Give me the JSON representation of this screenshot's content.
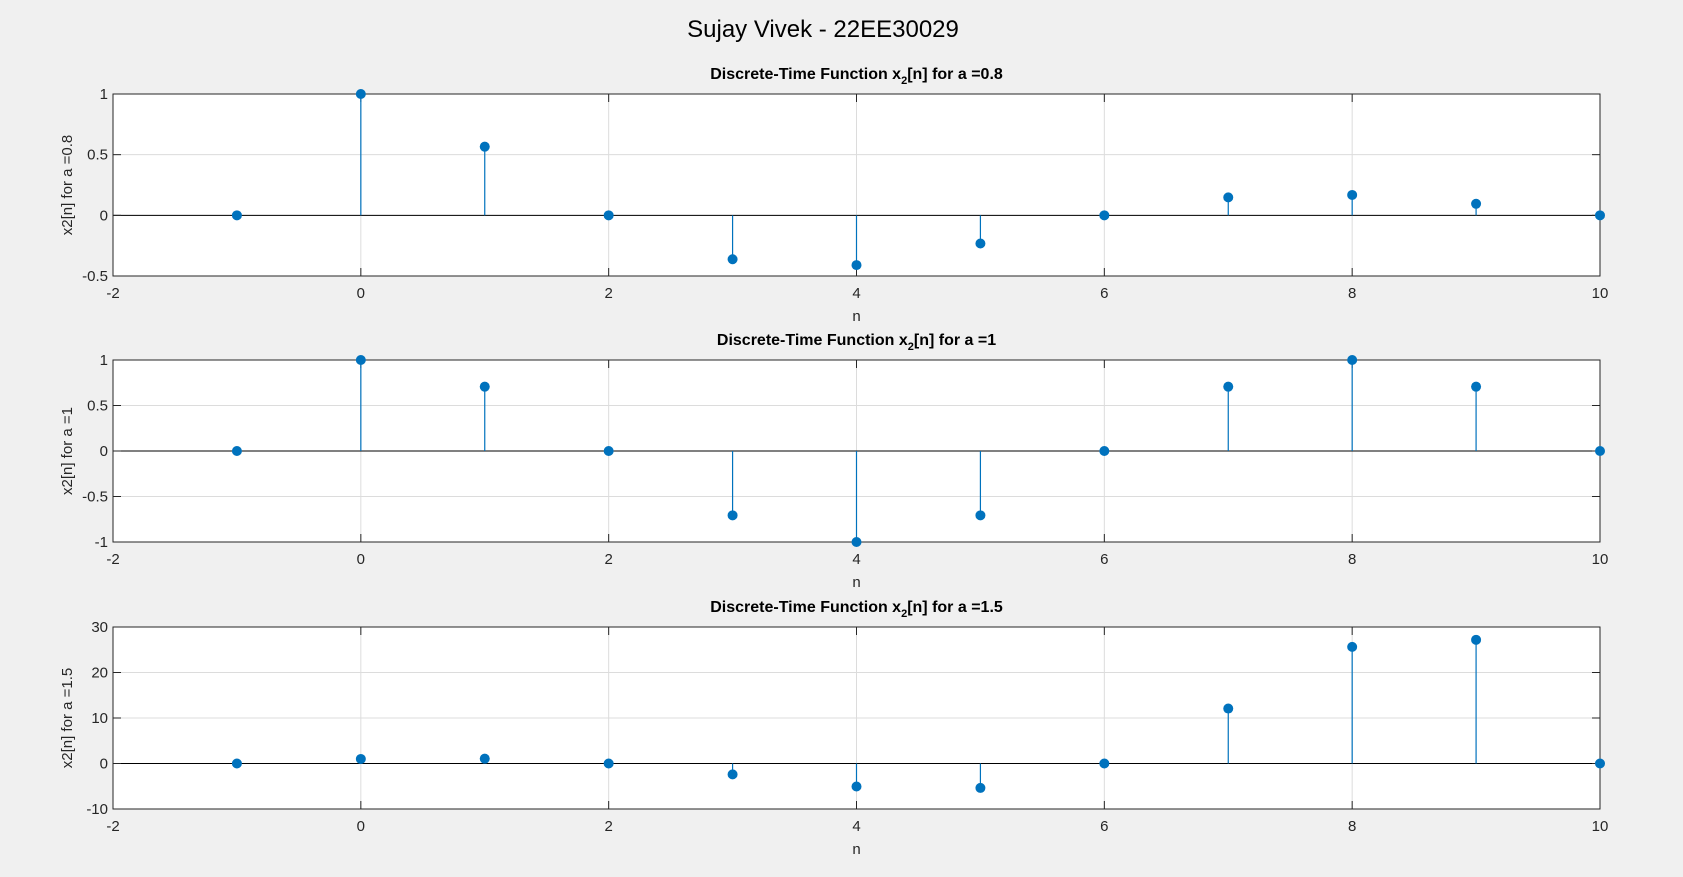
{
  "figure": {
    "title": "Sujay Vivek - 22EE30029"
  },
  "colors": {
    "background": "#f0f0f0",
    "axes_background": "#ffffff",
    "series": "#0072BD",
    "grid": "#dcdcdc"
  },
  "chart_data": [
    {
      "type": "stem",
      "title_main": "Discrete-Time Function x",
      "title_sub": "2",
      "title_rest": "[n] for a =0.8",
      "xlabel": "n",
      "ylabel": "x2[n] for a =0.8",
      "xlim": [
        -2,
        10
      ],
      "ylim": [
        -0.5,
        1
      ],
      "xticks": [
        -2,
        0,
        2,
        4,
        6,
        8,
        10
      ],
      "xtick_labels": [
        "-2",
        "0",
        "2",
        "4",
        "6",
        "8",
        "10"
      ],
      "yticks": [
        -0.5,
        0,
        0.5,
        1
      ],
      "ytick_labels": [
        "-0.5",
        "0",
        "0.5",
        "1"
      ],
      "grid": true,
      "x": [
        -1,
        0,
        1,
        2,
        3,
        4,
        5,
        6,
        7,
        8,
        9,
        10
      ],
      "y": [
        0,
        1,
        0.566,
        0,
        -0.362,
        -0.41,
        -0.232,
        0,
        0.148,
        0.168,
        0.095,
        0
      ]
    },
    {
      "type": "stem",
      "title_main": "Discrete-Time Function x",
      "title_sub": "2",
      "title_rest": "[n] for a =1",
      "xlabel": "n",
      "ylabel": "x2[n] for a =1",
      "xlim": [
        -2,
        10
      ],
      "ylim": [
        -1,
        1
      ],
      "xticks": [
        -2,
        0,
        2,
        4,
        6,
        8,
        10
      ],
      "xtick_labels": [
        "-2",
        "0",
        "2",
        "4",
        "6",
        "8",
        "10"
      ],
      "yticks": [
        -1,
        -0.5,
        0,
        0.5,
        1
      ],
      "ytick_labels": [
        "-1",
        "-0.5",
        "0",
        "0.5",
        "1"
      ],
      "grid": true,
      "x": [
        -1,
        0,
        1,
        2,
        3,
        4,
        5,
        6,
        7,
        8,
        9,
        10
      ],
      "y": [
        0,
        1,
        0.707,
        0,
        -0.707,
        -1,
        -0.707,
        0,
        0.707,
        1,
        0.707,
        0
      ]
    },
    {
      "type": "stem",
      "title_main": "Discrete-Time Function x",
      "title_sub": "2",
      "title_rest": "[n] for a =1.5",
      "xlabel": "n",
      "ylabel": "x2[n] for a =1.5",
      "xlim": [
        -2,
        10
      ],
      "ylim": [
        -10,
        30
      ],
      "xticks": [
        -2,
        0,
        2,
        4,
        6,
        8,
        10
      ],
      "xtick_labels": [
        "-2",
        "0",
        "2",
        "4",
        "6",
        "8",
        "10"
      ],
      "yticks": [
        -10,
        0,
        10,
        20,
        30
      ],
      "ytick_labels": [
        "-10",
        "0",
        "10",
        "20",
        "30"
      ],
      "grid": true,
      "x": [
        -1,
        0,
        1,
        2,
        3,
        4,
        5,
        6,
        7,
        8,
        9,
        10
      ],
      "y": [
        0,
        1,
        1.06,
        0,
        -2.39,
        -5.06,
        -5.37,
        0,
        12.08,
        25.63,
        27.18,
        0
      ]
    }
  ]
}
